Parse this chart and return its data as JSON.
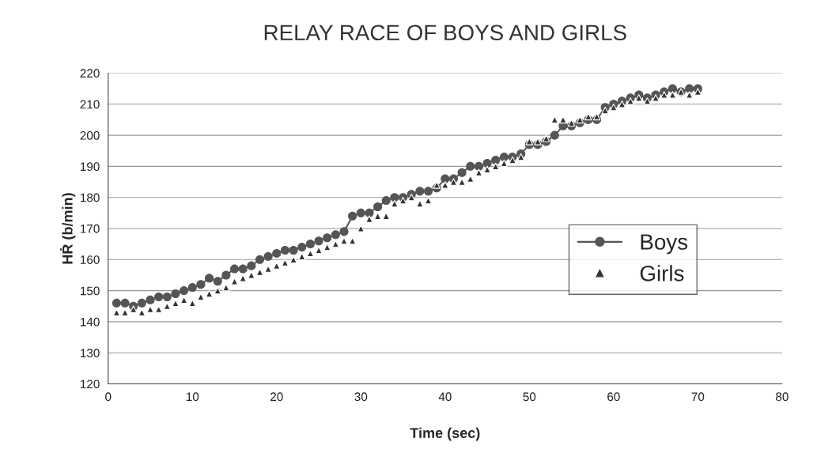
{
  "chart_data": {
    "type": "line",
    "title": "RELAY RACE OF BOYS AND GIRLS",
    "xlabel": "Time (sec)",
    "ylabel": "HṘ (b/min)",
    "x": [
      1,
      2,
      3,
      4,
      5,
      6,
      7,
      8,
      9,
      10,
      11,
      12,
      13,
      14,
      15,
      16,
      17,
      18,
      19,
      20,
      21,
      22,
      23,
      24,
      25,
      26,
      27,
      28,
      29,
      30,
      31,
      32,
      33,
      34,
      35,
      36,
      37,
      38,
      39,
      40,
      41,
      42,
      43,
      44,
      45,
      46,
      47,
      48,
      49,
      50,
      51,
      52,
      53,
      54,
      55,
      56,
      57,
      58,
      59,
      60,
      61,
      62,
      63,
      64,
      65,
      66,
      67,
      68,
      69,
      70
    ],
    "series": [
      {
        "name": "Boys",
        "color": "#555555",
        "marker": "circle",
        "line_style": "solid",
        "values": [
          146,
          146,
          145,
          146,
          147,
          148,
          148,
          149,
          150,
          151,
          152,
          154,
          153,
          155,
          157,
          157,
          158,
          160,
          161,
          162,
          163,
          163,
          164,
          165,
          166,
          167,
          168,
          169,
          174,
          175,
          175,
          177,
          179,
          180,
          180,
          181,
          182,
          182,
          183,
          186,
          186,
          188,
          190,
          190,
          191,
          192,
          193,
          193,
          194,
          197,
          197,
          198,
          200,
          203,
          203,
          204,
          205,
          205,
          209,
          210,
          211,
          212,
          213,
          212,
          213,
          214,
          215,
          214,
          215,
          215
        ]
      },
      {
        "name": "Girls",
        "color": "#333333",
        "type": "scatter",
        "marker": "triangle",
        "values": [
          143,
          143,
          144,
          143,
          144,
          144,
          145,
          146,
          147,
          146,
          148,
          149,
          150,
          151,
          153,
          154,
          155,
          156,
          157,
          158,
          159,
          160,
          161,
          162,
          163,
          164,
          165,
          166,
          166,
          170,
          173,
          174,
          174,
          178,
          179,
          180,
          178,
          179,
          184,
          184,
          185,
          185,
          186,
          188,
          189,
          190,
          191,
          192,
          193,
          198,
          198,
          199,
          205,
          205,
          204,
          205,
          206,
          206,
          208,
          209,
          210,
          211,
          212,
          211,
          212,
          213,
          213,
          214,
          213,
          214
        ]
      }
    ],
    "xlim": [
      0,
      80
    ],
    "xticks": [
      0,
      10,
      20,
      30,
      40,
      50,
      60,
      70,
      80
    ],
    "ylim": [
      120,
      220
    ],
    "yticks": [
      120,
      130,
      140,
      150,
      160,
      170,
      180,
      190,
      200,
      210,
      220
    ],
    "grid": "y",
    "legend": "right"
  }
}
